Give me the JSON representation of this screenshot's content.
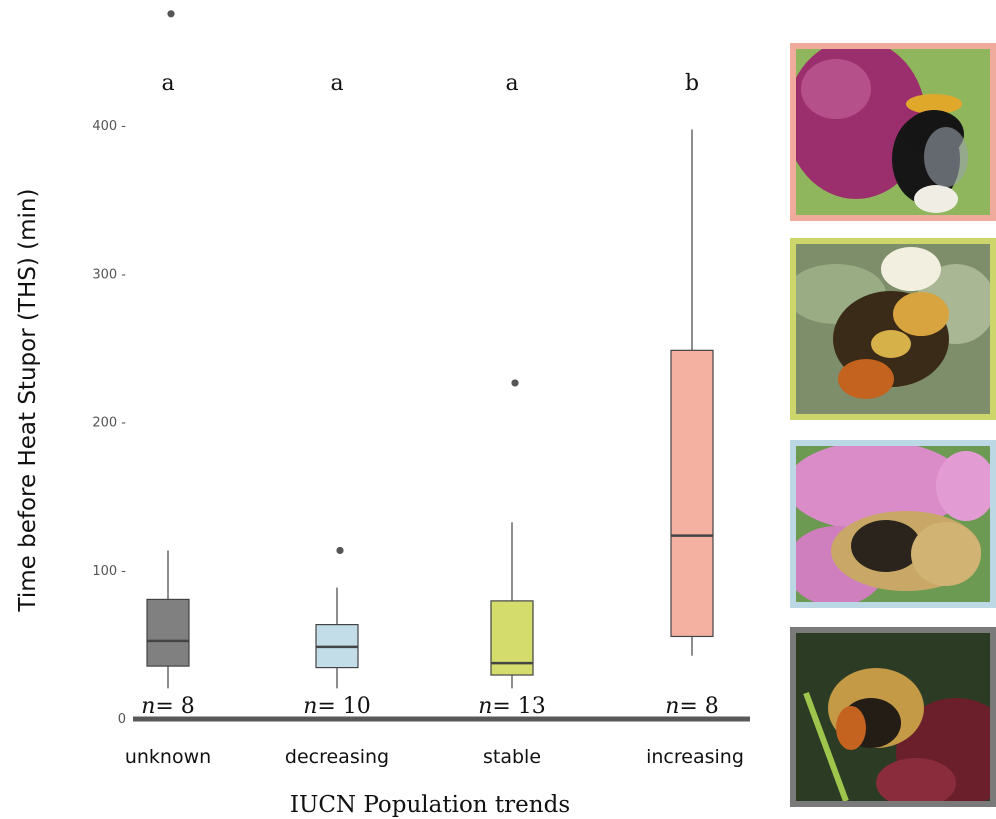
{
  "chart_data": {
    "type": "box",
    "title": "",
    "ylabel": "Time before Heat Stupor (THS) (min)",
    "xlabel": "IUCN Population trends",
    "ylim": [
      0,
      480
    ],
    "yticks": [
      0,
      100,
      200,
      300,
      400
    ],
    "ytick_labels": [
      "0",
      "100 -",
      "200 -",
      "300 -",
      "400 -"
    ],
    "categories": [
      "unknown",
      "decreasing",
      "stable",
      "increasing"
    ],
    "boxes": [
      {
        "label": "unknown",
        "q1": 35,
        "median": 52,
        "q3": 80,
        "whisker_low": 20,
        "whisker_high": 113,
        "outliers": [
          475
        ],
        "color": "#808080",
        "significance": "a",
        "n": "8"
      },
      {
        "label": "decreasing",
        "q1": 34,
        "median": 48,
        "q3": 63,
        "whisker_low": 20,
        "whisker_high": 88,
        "outliers": [
          113
        ],
        "color": "#c2dde7",
        "significance": "a",
        "n": "10"
      },
      {
        "label": "stable",
        "q1": 29,
        "median": 37,
        "q3": 79,
        "whisker_low": 20,
        "whisker_high": 132,
        "outliers": [
          226
        ],
        "color": "#d4dc6c",
        "significance": "a",
        "n": "13"
      },
      {
        "label": "increasing",
        "q1": 55,
        "median": 123,
        "q3": 248,
        "whisker_low": 42,
        "whisker_high": 397,
        "outliers": [],
        "color": "#f4b1a2",
        "significance": "b",
        "n": "8"
      }
    ],
    "n_prefix": "n",
    "n_equals": "= "
  },
  "photos": [
    {
      "name": "photo-increasing",
      "border_color": "#f0ab9c",
      "subject": "bumblebee-on-purple-flower"
    },
    {
      "name": "photo-stable",
      "border_color": "#cdd66a",
      "subject": "bumblebee-on-white-flower"
    },
    {
      "name": "photo-decreasing",
      "border_color": "#bcd8e4",
      "subject": "bumblebee-on-pink-flower"
    },
    {
      "name": "photo-unknown",
      "border_color": "#7a7a7a",
      "subject": "bumblebee-on-red-flower"
    }
  ]
}
